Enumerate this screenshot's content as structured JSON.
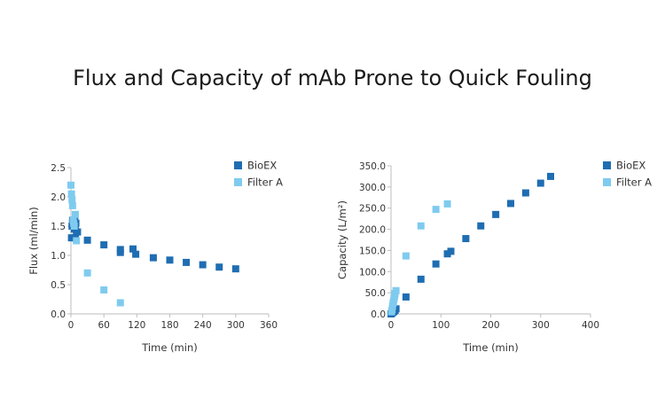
{
  "title": "Flux and Capacity of mAb Prone to Quick Fouling",
  "colors": {
    "bioex": "#1f6db2",
    "filterA": "#7fcbef",
    "axis": "#bdbdbd"
  },
  "chart_data": [
    {
      "type": "scatter",
      "xlabel": "Time (min)",
      "ylabel": "Flux (ml/min)",
      "xlim": [
        0,
        360
      ],
      "ylim": [
        0,
        2.5
      ],
      "xticks": [
        "0",
        "60",
        "120",
        "180",
        "240",
        "300",
        "360"
      ],
      "yticks": [
        "0.0",
        "0.5",
        "1.0",
        "1.5",
        "2.0",
        "2.5"
      ],
      "legend_position": "top-right",
      "series": [
        {
          "name": "BioEX",
          "color": "#1f6db2",
          "points": [
            [
              1,
              1.3
            ],
            [
              2,
              1.5
            ],
            [
              3,
              1.55
            ],
            [
              3,
              1.6
            ],
            [
              4,
              1.5
            ],
            [
              5,
              1.55
            ],
            [
              5,
              1.6
            ],
            [
              6,
              1.45
            ],
            [
              7,
              1.5
            ],
            [
              7,
              1.6
            ],
            [
              8,
              1.3
            ],
            [
              8,
              1.5
            ],
            [
              9,
              1.55
            ],
            [
              10,
              1.4
            ],
            [
              12,
              1.4
            ],
            [
              30,
              1.26
            ],
            [
              60,
              1.18
            ],
            [
              90,
              1.05
            ],
            [
              90,
              1.1
            ],
            [
              113,
              1.11
            ],
            [
              118,
              1.02
            ],
            [
              150,
              0.96
            ],
            [
              180,
              0.92
            ],
            [
              210,
              0.88
            ],
            [
              240,
              0.84
            ],
            [
              270,
              0.8
            ],
            [
              300,
              0.77
            ]
          ]
        },
        {
          "name": "Filter A",
          "color": "#7fcbef",
          "points": [
            [
              0,
              2.2
            ],
            [
              1,
              2.05
            ],
            [
              2,
              1.95
            ],
            [
              3,
              1.85
            ],
            [
              4,
              1.6
            ],
            [
              5,
              1.55
            ],
            [
              6,
              1.5
            ],
            [
              8,
              1.7
            ],
            [
              10,
              1.25
            ],
            [
              30,
              0.7
            ],
            [
              60,
              0.41
            ],
            [
              90,
              0.19
            ]
          ]
        }
      ]
    },
    {
      "type": "scatter",
      "xlabel": "Time (min)",
      "ylabel": "Capacity (L/m²)",
      "xlim": [
        0,
        400
      ],
      "ylim": [
        0,
        350
      ],
      "xticks": [
        "0",
        "100",
        "200",
        "300",
        "400"
      ],
      "yticks": [
        "0.0",
        "50.0",
        "100.0",
        "150.0",
        "200.0",
        "250.0",
        "300.0",
        "350.0"
      ],
      "legend_position": "top-right",
      "series": [
        {
          "name": "BioEX",
          "color": "#1f6db2",
          "points": [
            [
              0,
              0
            ],
            [
              2,
              2
            ],
            [
              4,
              4
            ],
            [
              6,
              6
            ],
            [
              8,
              8
            ],
            [
              10,
              12
            ],
            [
              30,
              40
            ],
            [
              60,
              82
            ],
            [
              90,
              118
            ],
            [
              113,
              142
            ],
            [
              120,
              148
            ],
            [
              150,
              178
            ],
            [
              180,
              208
            ],
            [
              210,
              235
            ],
            [
              240,
              261
            ],
            [
              270,
              286
            ],
            [
              300,
              309
            ],
            [
              320,
              325
            ]
          ]
        },
        {
          "name": "Filter A",
          "color": "#7fcbef",
          "points": [
            [
              1,
              5
            ],
            [
              2,
              10
            ],
            [
              3,
              18
            ],
            [
              4,
              25
            ],
            [
              5,
              30
            ],
            [
              6,
              36
            ],
            [
              7,
              42
            ],
            [
              8,
              48
            ],
            [
              10,
              55
            ],
            [
              30,
              137
            ],
            [
              60,
              208
            ],
            [
              90,
              247
            ],
            [
              113,
              260
            ]
          ]
        }
      ]
    }
  ]
}
